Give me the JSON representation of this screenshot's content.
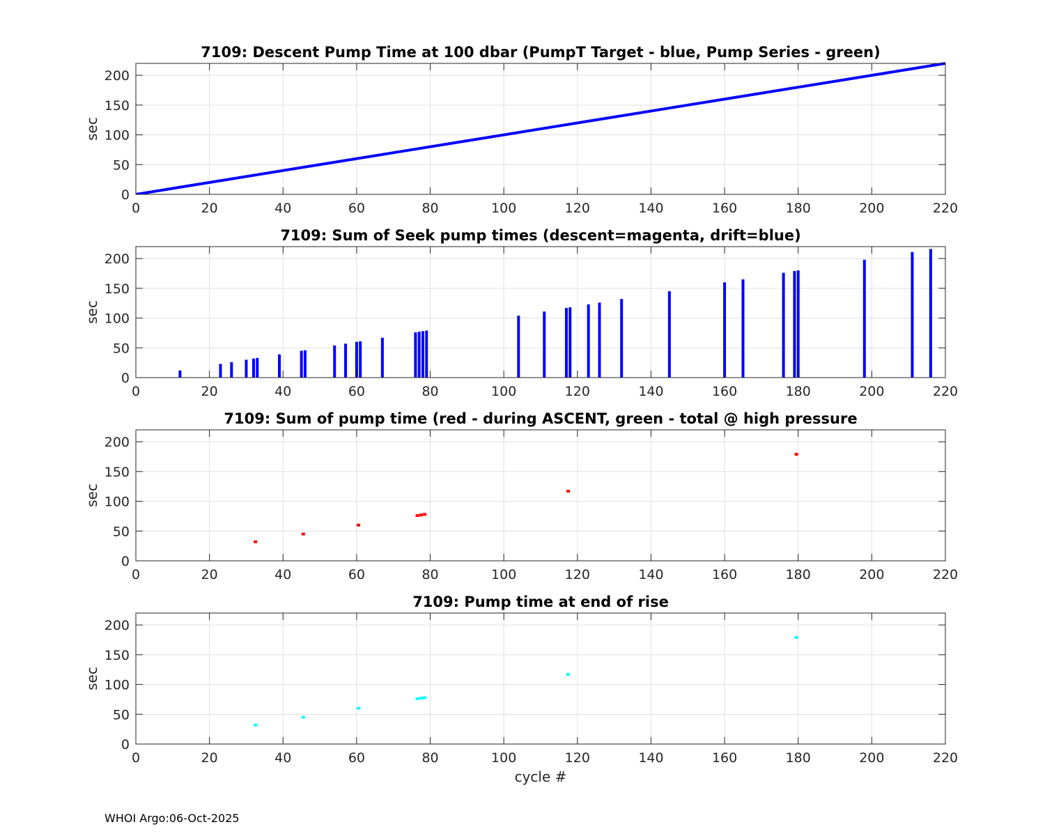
{
  "footer": "WHOI Argo:06-Oct-2025",
  "colors": {
    "blue": "#0000ff",
    "red": "#ff0000",
    "cyan": "#00ffff"
  },
  "chart_data": [
    {
      "type": "line",
      "title": "7109: Descent Pump Time at 100 dbar (PumpT Target - blue, Pump Series - green)",
      "xlabel": "",
      "ylabel": "sec",
      "xlim": [
        0,
        220
      ],
      "ylim": [
        0,
        220
      ],
      "xticks": [
        0,
        20,
        40,
        60,
        80,
        100,
        120,
        140,
        160,
        180,
        200,
        220
      ],
      "yticks": [
        0,
        50,
        100,
        150,
        200
      ],
      "grid": true,
      "series": [
        {
          "color": "#0000ff",
          "x": [
            0,
            220
          ],
          "y": [
            0,
            220
          ]
        }
      ]
    },
    {
      "type": "bar",
      "title": "7109: Sum of Seek pump times (descent=magenta, drift=blue)",
      "xlabel": "",
      "ylabel": "sec",
      "xlim": [
        0,
        220
      ],
      "ylim": [
        0,
        220
      ],
      "xticks": [
        0,
        20,
        40,
        60,
        80,
        100,
        120,
        140,
        160,
        180,
        200,
        220
      ],
      "yticks": [
        0,
        50,
        100,
        150,
        200
      ],
      "grid": true,
      "series": [
        {
          "color": "#0000ff",
          "x": [
            12,
            23,
            26,
            30,
            32,
            33,
            39,
            45,
            46,
            54,
            57,
            60,
            61,
            67,
            76,
            77,
            78,
            79,
            104,
            111,
            117,
            118,
            123,
            126,
            132,
            145,
            160,
            165,
            176,
            179,
            180,
            198,
            211,
            216
          ],
          "y": [
            12,
            23,
            26,
            30,
            32,
            33,
            39,
            45,
            46,
            54,
            57,
            60,
            61,
            67,
            76,
            77,
            78,
            79,
            104,
            111,
            117,
            118,
            123,
            126,
            132,
            145,
            160,
            165,
            176,
            179,
            180,
            198,
            211,
            216
          ]
        }
      ]
    },
    {
      "type": "scatter",
      "title": "7109: Sum of pump time (red - during ASCENT, green - total @ high pressure",
      "xlabel": "",
      "ylabel": "sec",
      "xlim": [
        0,
        220
      ],
      "ylim": [
        0,
        220
      ],
      "xticks": [
        0,
        20,
        40,
        60,
        80,
        100,
        120,
        140,
        160,
        180,
        200,
        220
      ],
      "yticks": [
        0,
        50,
        100,
        150,
        200
      ],
      "grid": true,
      "series": [
        {
          "color": "#ff0000",
          "x": [
            32.5,
            45.5,
            60.5,
            76.5,
            77.5,
            78.5,
            117.5,
            179.5
          ],
          "y": [
            32,
            45,
            60,
            76,
            77,
            78,
            117,
            179
          ]
        }
      ]
    },
    {
      "type": "scatter",
      "title": "7109: Pump time at end of rise",
      "xlabel": "cycle #",
      "ylabel": "sec",
      "xlim": [
        0,
        220
      ],
      "ylim": [
        0,
        220
      ],
      "xticks": [
        0,
        20,
        40,
        60,
        80,
        100,
        120,
        140,
        160,
        180,
        200,
        220
      ],
      "yticks": [
        0,
        50,
        100,
        150,
        200
      ],
      "grid": true,
      "series": [
        {
          "color": "#00ffff",
          "x": [
            32.5,
            45.5,
            60.5,
            76.5,
            77.5,
            78.5,
            117.5,
            179.5
          ],
          "y": [
            32,
            45,
            60,
            76,
            77,
            78,
            117,
            179
          ]
        }
      ]
    }
  ]
}
